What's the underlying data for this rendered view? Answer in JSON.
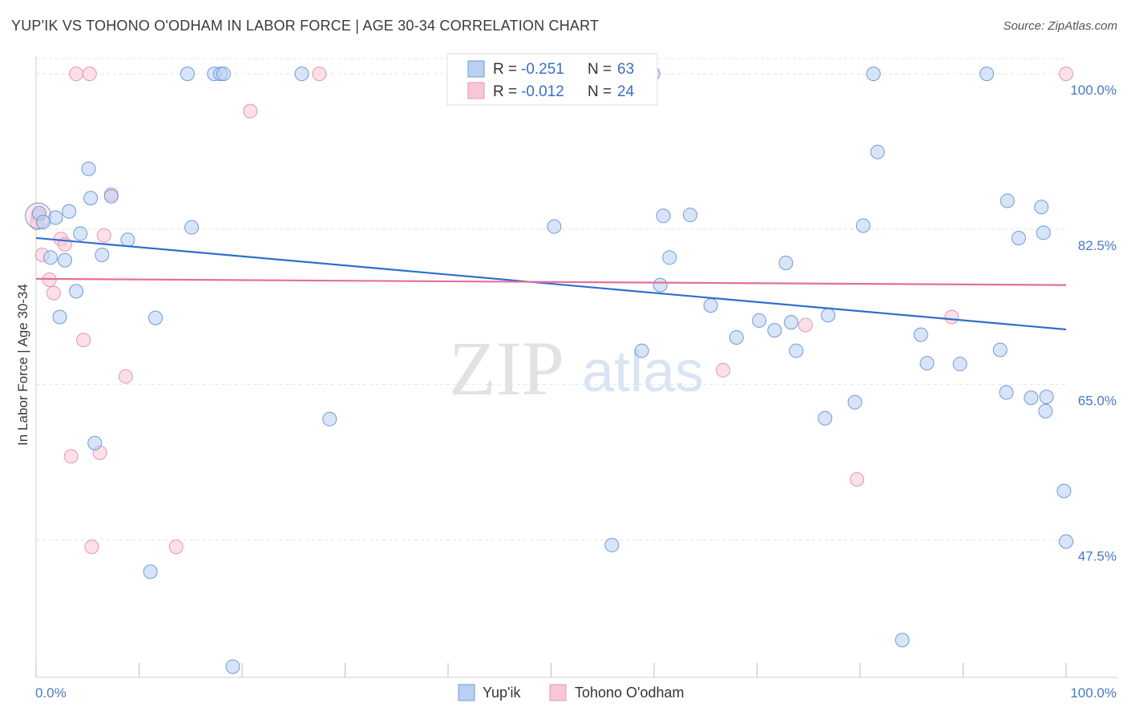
{
  "title": "YUP'IK VS TOHONO O'ODHAM IN LABOR FORCE | AGE 30-34 CORRELATION CHART",
  "source": "Source: ZipAtlas.com",
  "watermark": {
    "zip": "ZIP",
    "atlas": "atlas"
  },
  "colors": {
    "blue_fill": "#b8d0f2",
    "blue_stroke": "#6f9ad8",
    "blue_line": "#2f6fcf",
    "pink_fill": "#f8c6d4",
    "pink_stroke": "#e995ae",
    "pink_line": "#e3709a",
    "tick_label": "#4a78c2",
    "grid": "#e4e4e4"
  },
  "legend": {
    "rows": [
      {
        "r_label": "R =",
        "r_value": "-0.251",
        "n_label": "N =",
        "n_value": "63"
      },
      {
        "r_label": "R =",
        "r_value": "-0.012",
        "n_label": "N =",
        "n_value": "24"
      }
    ]
  },
  "chart_data": {
    "type": "scatter",
    "xlabel": "",
    "ylabel": "In Labor Force | Age 30-34",
    "xlim": [
      0,
      100
    ],
    "ylim": [
      32,
      102
    ],
    "x_tick_labels": [
      {
        "value": 0,
        "label": "0.0%"
      },
      {
        "value": 100,
        "label": "100.0%"
      }
    ],
    "y_ticks": [
      {
        "value": 100,
        "label": "100.0%"
      },
      {
        "value": 82.5,
        "label": "82.5%"
      },
      {
        "value": 65,
        "label": "65.0%"
      },
      {
        "value": 47.5,
        "label": "47.5%"
      }
    ],
    "legend_position": "bottom-center",
    "series": [
      {
        "name": "Yup'ik",
        "trend": {
          "x": [
            0,
            100
          ],
          "y": [
            81.5,
            71.2
          ]
        },
        "points": [
          [
            0.3,
            84.3
          ],
          [
            0.7,
            83.3
          ],
          [
            1.4,
            79.3
          ],
          [
            1.9,
            83.8
          ],
          [
            2.3,
            72.6
          ],
          [
            2.8,
            79.0
          ],
          [
            3.2,
            84.5
          ],
          [
            3.9,
            75.5
          ],
          [
            4.3,
            82.0
          ],
          [
            5.1,
            89.3
          ],
          [
            5.3,
            86.0
          ],
          [
            5.7,
            58.4
          ],
          [
            6.4,
            79.6
          ],
          [
            7.3,
            86.2
          ],
          [
            8.9,
            81.3
          ],
          [
            11.1,
            43.9
          ],
          [
            11.6,
            72.5
          ],
          [
            14.7,
            100.0
          ],
          [
            15.1,
            82.7
          ],
          [
            17.3,
            100.0
          ],
          [
            17.9,
            100.0
          ],
          [
            18.2,
            100.0
          ],
          [
            19.1,
            33.2
          ],
          [
            25.8,
            100.0
          ],
          [
            28.5,
            61.1
          ],
          [
            41.4,
            100.0
          ],
          [
            50.3,
            82.8
          ],
          [
            55.9,
            46.9
          ],
          [
            58.8,
            68.8
          ],
          [
            59.9,
            100.0
          ],
          [
            60.6,
            76.2
          ],
          [
            60.9,
            84.0
          ],
          [
            61.5,
            79.3
          ],
          [
            63.5,
            84.1
          ],
          [
            65.5,
            73.9
          ],
          [
            68.0,
            70.3
          ],
          [
            70.2,
            72.2
          ],
          [
            71.7,
            71.1
          ],
          [
            72.8,
            78.7
          ],
          [
            73.3,
            72.0
          ],
          [
            73.8,
            68.8
          ],
          [
            76.6,
            61.2
          ],
          [
            76.9,
            72.8
          ],
          [
            79.5,
            63.0
          ],
          [
            80.3,
            82.9
          ],
          [
            81.3,
            100.0
          ],
          [
            81.7,
            91.2
          ],
          [
            84.1,
            36.2
          ],
          [
            85.9,
            70.6
          ],
          [
            86.5,
            67.4
          ],
          [
            89.7,
            67.3
          ],
          [
            92.3,
            100.0
          ],
          [
            93.6,
            68.9
          ],
          [
            94.2,
            64.1
          ],
          [
            94.3,
            85.7
          ],
          [
            95.4,
            81.5
          ],
          [
            96.6,
            63.5
          ],
          [
            97.6,
            85.0
          ],
          [
            97.8,
            82.1
          ],
          [
            98.1,
            63.6
          ],
          [
            98.0,
            62.0
          ],
          [
            99.8,
            53.0
          ],
          [
            100.0,
            47.3
          ]
        ]
      },
      {
        "name": "Tohono O'odham",
        "trend": {
          "x": [
            0,
            100
          ],
          "y": [
            76.9,
            76.2
          ]
        },
        "points": [
          [
            0.2,
            84.0
          ],
          [
            0.6,
            79.6
          ],
          [
            1.3,
            76.8
          ],
          [
            1.7,
            75.3
          ],
          [
            2.4,
            81.4
          ],
          [
            2.8,
            80.8
          ],
          [
            3.4,
            56.9
          ],
          [
            3.9,
            100.0
          ],
          [
            4.6,
            70.0
          ],
          [
            5.2,
            100.0
          ],
          [
            5.4,
            46.7
          ],
          [
            6.2,
            57.3
          ],
          [
            6.6,
            81.8
          ],
          [
            7.3,
            86.4
          ],
          [
            8.7,
            65.9
          ],
          [
            13.6,
            46.7
          ],
          [
            20.8,
            95.8
          ],
          [
            27.5,
            100.0
          ],
          [
            66.7,
            66.6
          ],
          [
            74.7,
            71.7
          ],
          [
            79.7,
            54.3
          ],
          [
            88.9,
            72.6
          ],
          [
            100.0,
            100.0
          ],
          [
            0.1,
            83.2
          ]
        ]
      }
    ]
  }
}
